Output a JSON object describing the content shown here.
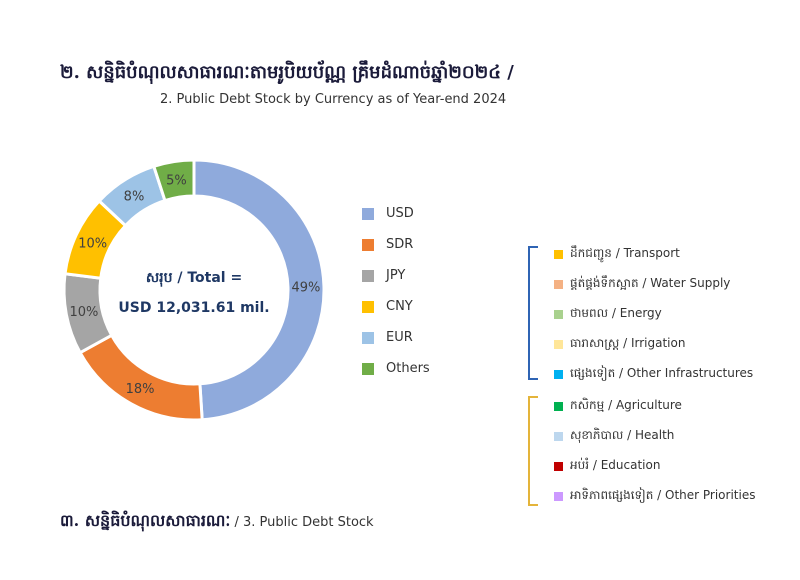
{
  "heading": {
    "main": "២. សន្និធិបំណុលសាធារណៈតាមរូបិយប័ណ្ណ គ្រឹមដំណាច់ឆ្នាំ២០២៤ /",
    "sub": "2. Public Debt Stock by Currency as of Year-end 2024"
  },
  "chart_data": {
    "type": "pie",
    "categories": [
      "USD",
      "SDR",
      "JPY",
      "CNY",
      "EUR",
      "Others"
    ],
    "values": [
      49,
      18,
      10,
      10,
      8,
      5
    ],
    "labels": [
      "49%",
      "18%",
      "10%",
      "10%",
      "8%",
      "5%"
    ],
    "colors": [
      "#8faadc",
      "#ed7d31",
      "#a5a5a5",
      "#ffc000",
      "#9dc3e6",
      "#70ad47"
    ],
    "center_label_line1": "សរុប / Total =",
    "center_label_line2": "USD 12,031.61 mil.",
    "legend_position": "right"
  },
  "sectors": {
    "items": [
      {
        "label": "ដឹកជញ្ជូន / Transport",
        "color": "#ffc000"
      },
      {
        "label": "ផ្គត់ផ្គង់ទឹកស្អាត / Water Supply",
        "color": "#f4b183"
      },
      {
        "label": "ថាមពល / Energy",
        "color": "#a9d18e"
      },
      {
        "label": "ធារាសាស្ត្រ / Irrigation",
        "color": "#ffe699"
      },
      {
        "label": "ផ្សេងទៀត / Other Infrastructures",
        "color": "#00b0f0"
      },
      {
        "label": "កសិកម្ម / Agriculture",
        "color": "#00b050"
      },
      {
        "label": "សុខាភិបាល / Health",
        "color": "#bdd7ee"
      },
      {
        "label": "អប់រំ / Education",
        "color": "#c00000"
      },
      {
        "label": "អាទិភាពផ្សេងទៀត / Other Priorities",
        "color": "#cc99ff"
      }
    ]
  },
  "section3": {
    "kh": "៣. សន្និធិបំណុលសាធារណៈ",
    "en": " / 3. Public Debt Stock"
  }
}
